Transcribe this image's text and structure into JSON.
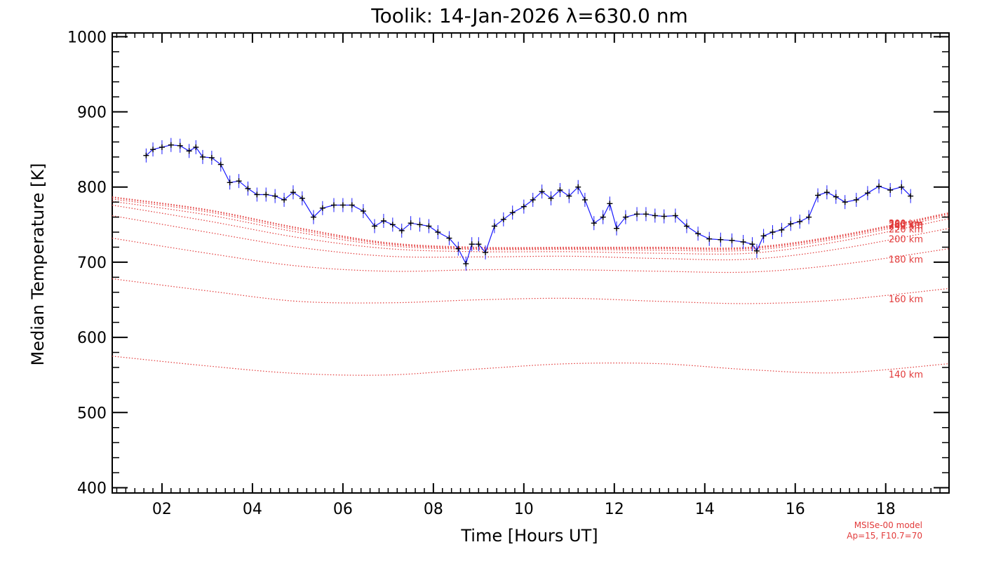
{
  "chart_data": {
    "type": "line",
    "title": "Toolik: 14-Jan-2026 λ=630.0 nm",
    "xlabel": "Time [Hours UT]",
    "ylabel": "Median Temperature [K]",
    "xlim": [
      0.9,
      19.4
    ],
    "ylim": [
      393,
      1005
    ],
    "x_ticks": [
      2,
      4,
      6,
      8,
      10,
      12,
      14,
      16,
      18
    ],
    "x_tick_labels": [
      "02",
      "04",
      "06",
      "08",
      "10",
      "12",
      "14",
      "16",
      "18"
    ],
    "y_ticks": [
      400,
      500,
      600,
      700,
      800,
      900,
      1000
    ],
    "y_tick_labels": [
      "400",
      "500",
      "600",
      "700",
      "800",
      "900",
      "1000"
    ],
    "measured": {
      "color_line": "#1a1aff",
      "color_marker": "#000000",
      "x": [
        1.65,
        1.8,
        2.0,
        2.2,
        2.4,
        2.6,
        2.75,
        2.9,
        3.1,
        3.3,
        3.5,
        3.7,
        3.9,
        4.1,
        4.3,
        4.5,
        4.7,
        4.9,
        5.1,
        5.35,
        5.55,
        5.8,
        6.0,
        6.2,
        6.45,
        6.7,
        6.9,
        7.1,
        7.3,
        7.5,
        7.7,
        7.9,
        8.1,
        8.35,
        8.55,
        8.72,
        8.85,
        9.0,
        9.15,
        9.35,
        9.55,
        9.75,
        10.0,
        10.2,
        10.4,
        10.6,
        10.8,
        11.0,
        11.2,
        11.35,
        11.55,
        11.75,
        11.9,
        12.05,
        12.25,
        12.5,
        12.7,
        12.9,
        13.1,
        13.35,
        13.6,
        13.85,
        14.1,
        14.35,
        14.6,
        14.85,
        15.05,
        15.15,
        15.3,
        15.5,
        15.7,
        15.9,
        16.1,
        16.3,
        16.5,
        16.7,
        16.9,
        17.1,
        17.35,
        17.6,
        17.85,
        18.1,
        18.35,
        18.55
      ],
      "y": [
        842,
        850,
        853,
        856,
        855,
        848,
        853,
        840,
        839,
        830,
        806,
        808,
        798,
        790,
        790,
        788,
        783,
        793,
        785,
        760,
        772,
        776,
        776,
        776,
        768,
        748,
        755,
        750,
        742,
        752,
        750,
        748,
        740,
        732,
        718,
        698,
        724,
        724,
        713,
        748,
        757,
        766,
        774,
        783,
        794,
        785,
        796,
        788,
        800,
        783,
        752,
        760,
        778,
        745,
        760,
        764,
        764,
        762,
        761,
        762,
        748,
        738,
        731,
        730,
        729,
        727,
        724,
        715,
        735,
        740,
        743,
        751,
        754,
        760,
        789,
        793,
        787,
        780,
        783,
        792,
        801,
        796,
        800,
        788
      ]
    },
    "model_curves": [
      {
        "label": "140 km",
        "x": [
          0.9,
          3.0,
          5.0,
          7.0,
          9.0,
          11.0,
          13.0,
          15.0,
          17.0,
          19.4
        ],
        "y": [
          575,
          562,
          552,
          550,
          558,
          565,
          565,
          557,
          553,
          565
        ]
      },
      {
        "label": "160 km",
        "x": [
          0.9,
          3.0,
          5.0,
          7.0,
          9.0,
          11.0,
          13.0,
          15.0,
          17.0,
          19.4
        ],
        "y": [
          678,
          662,
          648,
          646,
          650,
          652,
          648,
          645,
          650,
          665
        ]
      },
      {
        "label": "180 km",
        "x": [
          0.9,
          3.0,
          5.0,
          7.0,
          9.0,
          11.0,
          13.0,
          15.0,
          17.0,
          19.4
        ],
        "y": [
          732,
          712,
          695,
          688,
          690,
          690,
          688,
          687,
          697,
          718
        ]
      },
      {
        "label": "200 km",
        "x": [
          0.9,
          3.0,
          5.0,
          7.0,
          9.0,
          11.0,
          13.0,
          15.0,
          17.0,
          19.4
        ],
        "y": [
          762,
          740,
          720,
          708,
          707,
          708,
          705,
          704,
          718,
          745
        ]
      },
      {
        "label": "220 km",
        "x": [
          0.9,
          3.0,
          5.0,
          7.0,
          9.0,
          11.0,
          13.0,
          15.0,
          17.0,
          19.4
        ],
        "y": [
          776,
          755,
          733,
          718,
          714,
          714,
          712,
          712,
          728,
          758
        ]
      },
      {
        "label": "240 km",
        "x": [
          0.9,
          3.0,
          5.0,
          7.0,
          9.0,
          11.0,
          13.0,
          15.0,
          17.0,
          19.4
        ],
        "y": [
          781,
          763,
          740,
          722,
          717,
          717,
          716,
          716,
          732,
          762
        ]
      },
      {
        "label": "260 km",
        "x": [
          0.9,
          3.0,
          5.0,
          7.0,
          9.0,
          11.0,
          13.0,
          15.0,
          17.0,
          19.4
        ],
        "y": [
          784,
          767,
          743,
          724,
          718,
          718,
          718,
          718,
          734,
          764
        ]
      },
      {
        "label": "280 km",
        "x": [
          0.9,
          3.0,
          5.0,
          7.0,
          9.0,
          11.0,
          13.0,
          15.0,
          17.0,
          19.4
        ],
        "y": [
          786,
          769,
          745,
          725,
          719,
          719,
          719,
          719,
          735,
          765
        ]
      },
      {
        "label": "300 km",
        "x": [
          0.9,
          3.0,
          5.0,
          7.0,
          9.0,
          11.0,
          13.0,
          15.0,
          17.0,
          19.4
        ],
        "y": [
          787,
          770,
          746,
          726,
          720,
          720,
          720,
          720,
          736,
          766
        ]
      }
    ],
    "model_color": "#e23a3a",
    "footnote_lines": [
      "MSISe-00 model",
      "Ap=15, F10.7=70"
    ],
    "grid": false,
    "legend": "none"
  }
}
